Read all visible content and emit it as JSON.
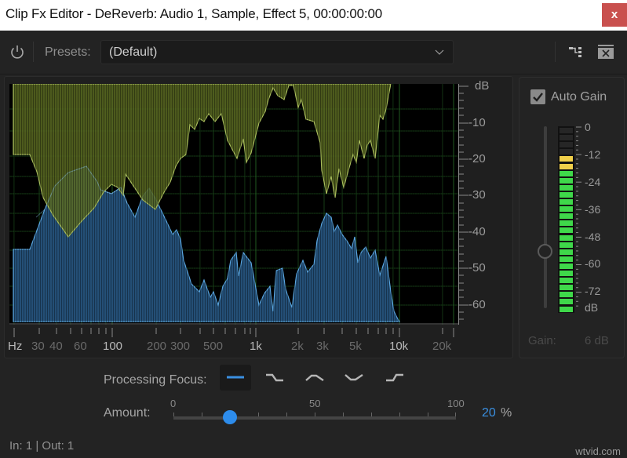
{
  "window": {
    "title": "Clip Fx Editor - DeReverb: Audio 1, Sample, Effect 5, 00:00:00:00",
    "close_label": "x"
  },
  "toolbar": {
    "power_icon": "power-icon",
    "presets_label": "Presets:",
    "presets_value": "(Default)",
    "routing_icon": "routing-icon",
    "remove_icon": "remove-effect-icon"
  },
  "graph": {
    "db_unit": "dB",
    "db_labels": [
      "-10",
      "-20",
      "-30",
      "-40",
      "-50",
      "-60"
    ],
    "hz_unit": "Hz",
    "hz_labels": [
      {
        "text": "30",
        "major": false
      },
      {
        "text": "40",
        "major": false
      },
      {
        "text": "60",
        "major": false
      },
      {
        "text": "100",
        "major": true
      },
      {
        "text": "200",
        "major": false
      },
      {
        "text": "300",
        "major": false
      },
      {
        "text": "500",
        "major": false
      },
      {
        "text": "1k",
        "major": true
      },
      {
        "text": "2k",
        "major": false
      },
      {
        "text": "3k",
        "major": false
      },
      {
        "text": "5k",
        "major": false
      },
      {
        "text": "10k",
        "major": true
      },
      {
        "text": "20k",
        "major": false
      }
    ],
    "colors": {
      "reduction": "#6b7a2a",
      "reduction_line": "#a9bd5c",
      "signal": "#2a5d88",
      "signal_line": "#5aa6e0",
      "grid": "#1f4a1f"
    }
  },
  "gain": {
    "auto_gain_label": "Auto Gain",
    "auto_gain_checked": true,
    "meter_labels": [
      "0",
      "-12",
      "-24",
      "-36",
      "-48",
      "-60",
      "-72"
    ],
    "meter_unit": "dB",
    "gain_label": "Gain:",
    "gain_value": "6 dB"
  },
  "processing": {
    "focus_label": "Processing Focus:",
    "focus_options": [
      "flat",
      "low-end",
      "mid",
      "mid-cut",
      "high-end"
    ],
    "focus_selected": "flat",
    "amount_label": "Amount:",
    "amount_ticks": [
      "0",
      "50",
      "100"
    ],
    "amount_value": "20",
    "amount_unit": "%"
  },
  "status": {
    "io_text": "In: 1 | Out: 1"
  },
  "watermark": "wtvid.com"
}
